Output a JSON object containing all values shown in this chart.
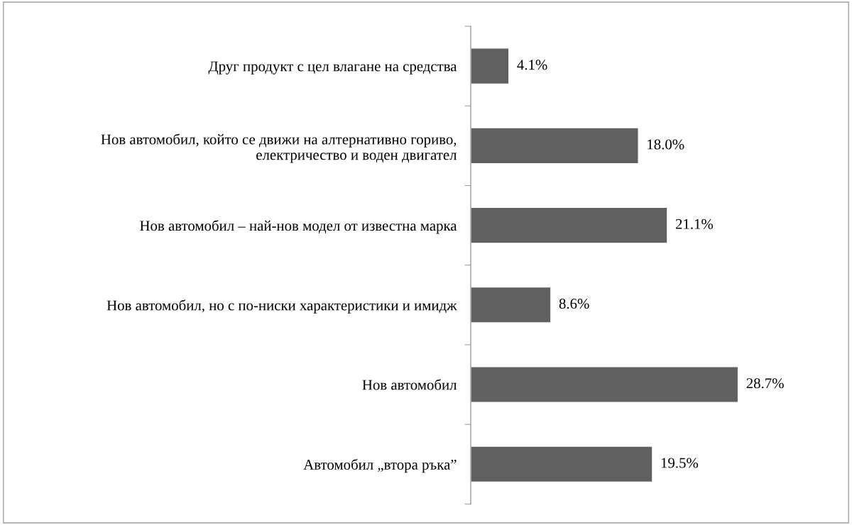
{
  "chart_data": {
    "type": "bar",
    "orientation": "horizontal",
    "categories": [
      "Друг продукт с цел влагане на средства",
      "Нов автомобил, който се движи на алтернативно гориво, електричество и воден двигател",
      "Нов автомобил – най-нов модел от известна марка",
      "Нов автомобил, но с по-ниски характеристики и имидж",
      "Нов автомобил",
      "Автомобил „втора ръка”"
    ],
    "values": [
      4.1,
      18.0,
      21.1,
      8.6,
      28.7,
      19.5
    ],
    "value_labels": [
      "4.1%",
      "18.0%",
      "21.1%",
      "8.6%",
      "28.7%",
      "19.5%"
    ],
    "color": "#606060",
    "grid": false,
    "legend": false,
    "tick_labels": "y"
  }
}
